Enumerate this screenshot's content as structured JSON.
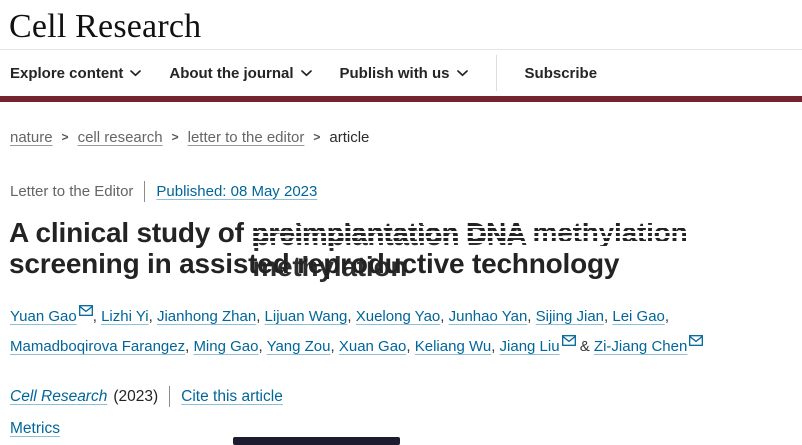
{
  "colors": {
    "accent_maroon": "#74232f",
    "link_blue": "#006699",
    "bottom_bar": "#1c1c2e"
  },
  "brand": {
    "logo_text": "Cell Research"
  },
  "nav": {
    "items": [
      {
        "label": "Explore content",
        "has_dropdown": true,
        "divider_before": false
      },
      {
        "label": "About the journal",
        "has_dropdown": true,
        "divider_before": false
      },
      {
        "label": "Publish with us",
        "has_dropdown": true,
        "divider_before": false
      },
      {
        "label": "Subscribe",
        "has_dropdown": false,
        "divider_before": true
      }
    ]
  },
  "breadcrumb": {
    "separator": ">",
    "items": [
      {
        "label": "nature",
        "link": true
      },
      {
        "label": "cell research",
        "link": true
      },
      {
        "label": "letter to the editor",
        "link": true
      },
      {
        "label": "article",
        "link": false
      }
    ]
  },
  "article": {
    "type_label": "Letter to the Editor",
    "published": "Published: 08 May 2023",
    "title_prefix": "A clinical study of ",
    "title_glitched": "preimplantation DNA methylation",
    "title_suffix": " screening in assisted reproductive technology",
    "authors_separator": ", ",
    "authors_final_separator": " & ",
    "authors": [
      {
        "name": "Yuan Gao",
        "has_email": true
      },
      {
        "name": "Lizhi Yi",
        "has_email": false
      },
      {
        "name": "Jianhong Zhan",
        "has_email": false
      },
      {
        "name": "Lijuan Wang",
        "has_email": false
      },
      {
        "name": "Xuelong Yao",
        "has_email": false
      },
      {
        "name": "Junhao Yan",
        "has_email": false
      },
      {
        "name": "Sijing Jian",
        "has_email": false
      },
      {
        "name": "Lei Gao",
        "has_email": false
      },
      {
        "name": "Mamadboqirova Farangez",
        "has_email": false
      },
      {
        "name": "Ming Gao",
        "has_email": false
      },
      {
        "name": "Yang Zou",
        "has_email": false
      },
      {
        "name": "Xuan Gao",
        "has_email": false
      },
      {
        "name": "Keliang Wu",
        "has_email": false
      },
      {
        "name": "Jiang Liu",
        "has_email": true
      },
      {
        "name": "Zi-Jiang Chen",
        "has_email": true
      }
    ],
    "journal_name": "Cell Research",
    "journal_year": "(2023)",
    "cite_label": "Cite this article",
    "metrics_label": "Metrics"
  }
}
